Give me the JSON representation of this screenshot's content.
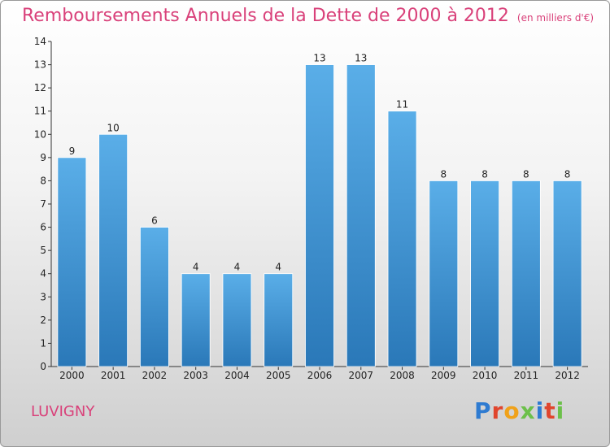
{
  "title": "Remboursements Annuels de la Dette de 2000 à 2012",
  "subtitle": "(en milliers d'€)",
  "place": "LUVIGNY",
  "logo": {
    "text": "Proxiti",
    "letters": [
      {
        "ch": "P",
        "color": "#2e7bd1"
      },
      {
        "ch": "r",
        "color": "#e0452d"
      },
      {
        "ch": "o",
        "color": "#f0a21a"
      },
      {
        "ch": "x",
        "color": "#6cc04a"
      },
      {
        "ch": "i",
        "color": "#2e7bd1"
      },
      {
        "ch": "t",
        "color": "#e0452d"
      },
      {
        "ch": "i",
        "color": "#6cc04a"
      }
    ]
  },
  "colors": {
    "title": "#d9417a",
    "bar_top": "#5aaee8",
    "bar_bottom": "#2a78b8",
    "axis": "#333333"
  },
  "chart_data": {
    "type": "bar",
    "categories": [
      "2000",
      "2001",
      "2002",
      "2003",
      "2004",
      "2005",
      "2006",
      "2007",
      "2008",
      "2009",
      "2010",
      "2011",
      "2012"
    ],
    "values": [
      9,
      10,
      6,
      4,
      4,
      4,
      13,
      13,
      11,
      8,
      8,
      8,
      8
    ],
    "value_labels": [
      "9",
      "10",
      "6",
      "4",
      "4",
      "4",
      "13",
      "13",
      "11",
      "8",
      "8",
      "8",
      "8"
    ],
    "title": "Remboursements Annuels de la Dette de 2000 à 2012",
    "ylabel": "",
    "xlabel": "",
    "ylim": [
      0,
      14
    ],
    "yticks": [
      0,
      1,
      2,
      3,
      4,
      5,
      6,
      7,
      8,
      9,
      10,
      11,
      12,
      13,
      14
    ],
    "grid": false
  }
}
